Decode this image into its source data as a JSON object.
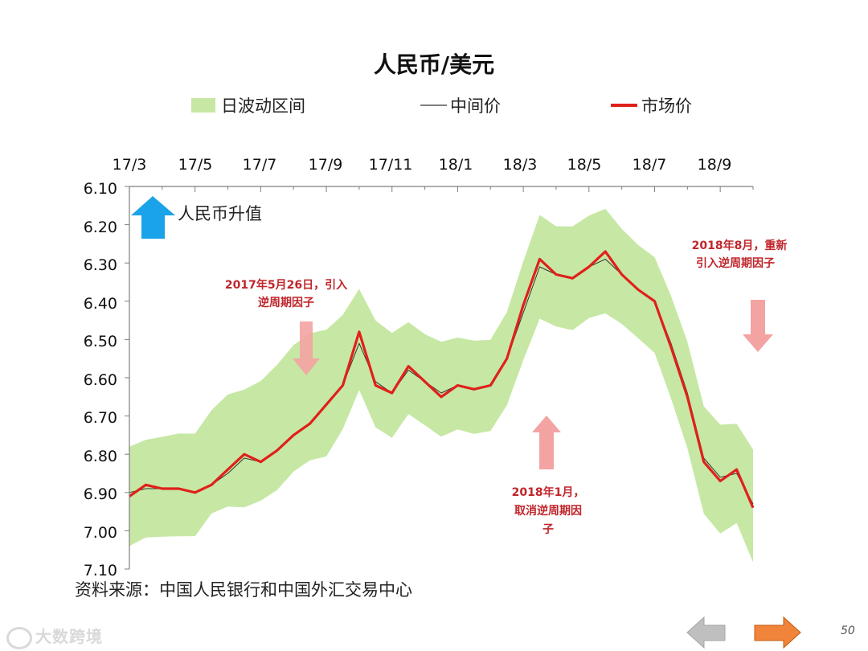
{
  "chart_data": {
    "type": "line",
    "title": "人民币/美元",
    "legend": [
      {
        "label": "日波动区间",
        "color": "#c6e8a4"
      },
      {
        "label": "中间价",
        "color": "#333333"
      },
      {
        "label": "市场价",
        "color": "#e0201b"
      }
    ],
    "x_ticks": [
      "17/3",
      "17/5",
      "17/7",
      "17/9",
      "17/11",
      "18/1",
      "18/3",
      "18/5",
      "18/7",
      "18/9"
    ],
    "x_axis_position": "top",
    "y_ticks": [
      "6.10",
      "6.20",
      "6.30",
      "6.40",
      "6.50",
      "6.60",
      "6.70",
      "6.80",
      "6.90",
      "7.00",
      "7.10"
    ],
    "ylim": [
      6.1,
      7.1
    ],
    "y_inverted": true,
    "grid": false,
    "x_months": [
      0,
      0.5,
      1,
      1.5,
      2,
      2.5,
      3,
      3.5,
      4,
      4.5,
      5,
      5.5,
      6,
      6.5,
      7,
      7.5,
      8,
      8.5,
      9,
      9.5,
      10,
      10.5,
      11,
      11.5,
      12,
      12.5,
      13,
      13.5,
      14,
      14.5,
      15,
      15.5,
      16,
      16.5,
      17,
      17.5,
      18,
      18.5,
      19
    ],
    "series": [
      {
        "name": "市场价",
        "values": [
          6.91,
          6.88,
          6.89,
          6.89,
          6.9,
          6.88,
          6.84,
          6.8,
          6.82,
          6.79,
          6.75,
          6.72,
          6.67,
          6.62,
          6.48,
          6.62,
          6.64,
          6.57,
          6.61,
          6.65,
          6.62,
          6.63,
          6.62,
          6.55,
          6.41,
          6.29,
          6.33,
          6.34,
          6.31,
          6.27,
          6.33,
          6.37,
          6.4,
          6.52,
          6.65,
          6.82,
          6.87,
          6.84,
          6.94
        ]
      },
      {
        "name": "中间价",
        "values": [
          6.9,
          6.89,
          6.89,
          6.89,
          6.9,
          6.88,
          6.85,
          6.81,
          6.82,
          6.79,
          6.75,
          6.72,
          6.67,
          6.62,
          6.51,
          6.61,
          6.64,
          6.58,
          6.61,
          6.64,
          6.62,
          6.63,
          6.62,
          6.55,
          6.43,
          6.31,
          6.33,
          6.34,
          6.31,
          6.29,
          6.33,
          6.37,
          6.4,
          6.51,
          6.64,
          6.81,
          6.86,
          6.85,
          6.93
        ]
      },
      {
        "name": "日波动区间_upper",
        "values": [
          6.78,
          6.76,
          6.75,
          6.74,
          6.74,
          6.68,
          6.64,
          6.63,
          6.61,
          6.57,
          6.52,
          6.49,
          6.48,
          6.44,
          6.37,
          6.45,
          6.48,
          6.45,
          6.48,
          6.5,
          6.49,
          6.5,
          6.5,
          6.43,
          6.3,
          6.18,
          6.21,
          6.21,
          6.18,
          6.16,
          6.21,
          6.25,
          6.28,
          6.38,
          6.5,
          6.67,
          6.72,
          6.72,
          6.79
        ]
      },
      {
        "name": "日波动区间_lower",
        "values": [
          7.04,
          7.02,
          7.02,
          7.02,
          7.02,
          6.96,
          6.94,
          6.94,
          6.92,
          6.89,
          6.84,
          6.81,
          6.8,
          6.73,
          6.63,
          6.73,
          6.76,
          6.7,
          6.73,
          6.76,
          6.74,
          6.75,
          6.74,
          6.67,
          6.55,
          6.44,
          6.46,
          6.47,
          6.44,
          6.43,
          6.46,
          6.5,
          6.54,
          6.66,
          6.79,
          6.96,
          7.01,
          6.98,
          7.08
        ]
      }
    ],
    "annotations": {
      "appreciation": "人民币升值",
      "event1": [
        "2017年5月26日，引入",
        "逆周期因子"
      ],
      "event2": [
        "2018年1月，",
        "取消逆周期因",
        "子"
      ],
      "event3": [
        "2018年8月，重新",
        "引入逆周期因子"
      ]
    }
  },
  "source": "资料来源：中国人民银行和中国外汇交易中心",
  "watermark": "大数跨境",
  "page_number": "50",
  "colors": {
    "band": "#c6e8a4",
    "market": "#e0201b",
    "mid": "#333333",
    "arrow_blue": "#1aa3e8",
    "arrow_red": "#f4a3a3",
    "annotation_text": "#c0262c",
    "nav_prev": "#bfbfbf",
    "nav_next": "#f0843a"
  }
}
